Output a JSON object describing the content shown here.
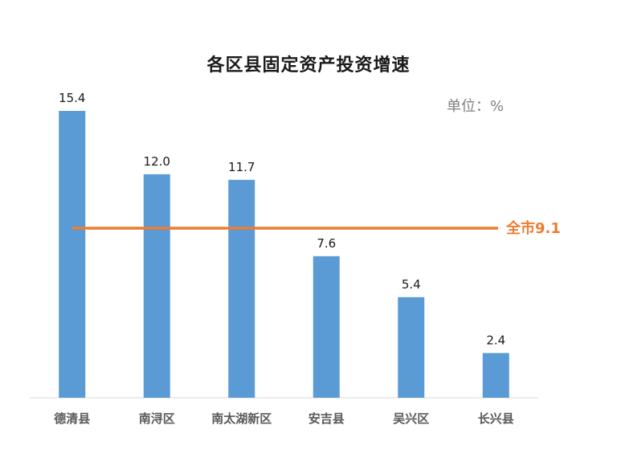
{
  "chart_data": {
    "type": "bar",
    "title": "各区县固定资产投资增速",
    "unit": "单位：%",
    "categories": [
      "德清县",
      "南浔区",
      "南太湖新区",
      "安吉县",
      "吴兴区",
      "长兴县"
    ],
    "values": [
      15.4,
      12.0,
      11.7,
      7.6,
      5.4,
      2.4
    ],
    "value_labels": [
      "15.4",
      "12.0",
      "11.7",
      "7.6",
      "5.4",
      "2.4"
    ],
    "ylim": [
      0,
      15.4
    ],
    "grid": false,
    "bar_color": "#5B9BD5",
    "reference_line": {
      "value": 9.1,
      "label": "全市9.1",
      "color": "#ED7D31"
    }
  }
}
